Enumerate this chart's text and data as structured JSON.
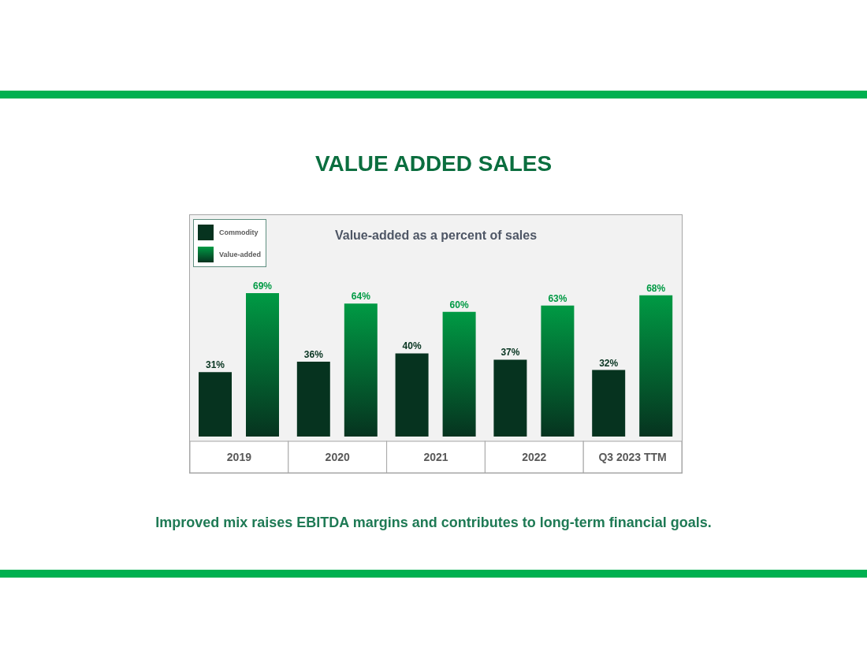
{
  "chart_data": {
    "type": "bar",
    "title": "VALUE ADDED SALES",
    "subtitle": "Value-added as a percent of sales",
    "categories": [
      "2019",
      "2020",
      "2021",
      "2022",
      "Q3 2023 TTM"
    ],
    "series": [
      {
        "name": "Commodity",
        "color": "#06331f",
        "values": [
          31,
          36,
          40,
          37,
          32
        ],
        "value_labels": [
          "31%",
          "36%",
          "40%",
          "37%",
          "32%"
        ]
      },
      {
        "name": "Value-added",
        "color": "#009a44",
        "values": [
          69,
          64,
          60,
          63,
          68
        ],
        "value_labels": [
          "69%",
          "64%",
          "60%",
          "63%",
          "68%"
        ]
      }
    ],
    "legend": "top left",
    "annotations": [
      "Improved mix raises EBITDA margins and contributes to long-term financial goals."
    ]
  }
}
